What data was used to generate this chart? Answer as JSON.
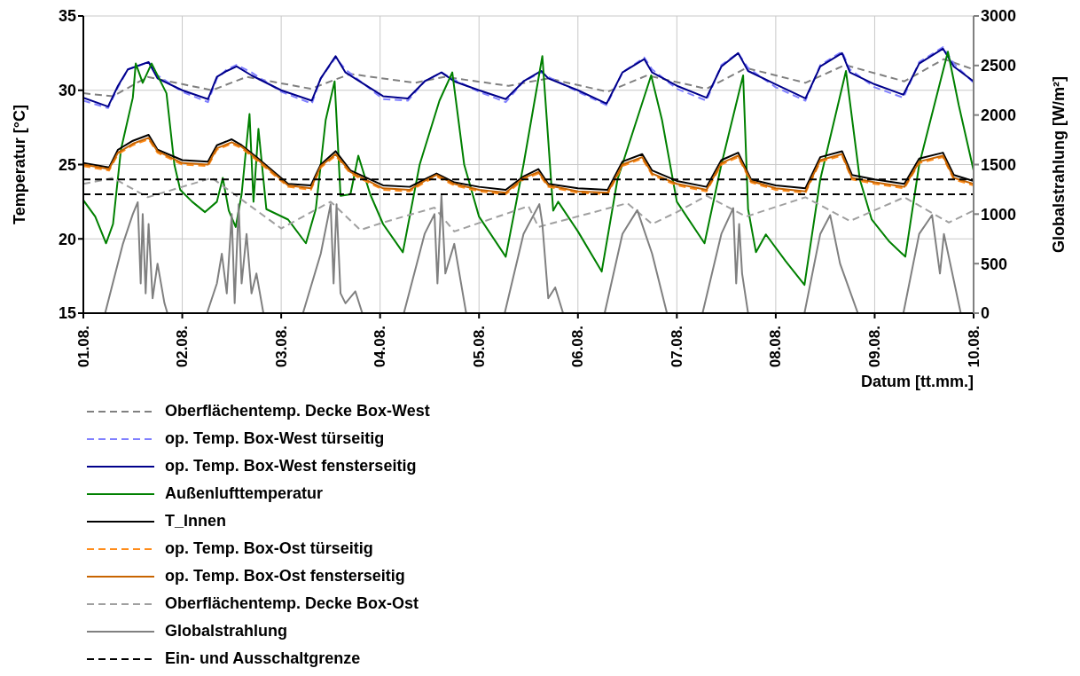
{
  "chart_data": {
    "type": "line",
    "xlabel": "Datum [tt.mm.]",
    "ylabel": "Temperatur [°C]",
    "y2label": "Globalstrahlung [W/m²]",
    "xlim": [
      "--08-01",
      "--08-10"
    ],
    "xticks": [
      {
        "value": "--08-01",
        "label": "01.08."
      },
      {
        "value": "--08-02",
        "label": "02.08."
      },
      {
        "value": "--08-03",
        "label": "03.08."
      },
      {
        "value": "--08-04",
        "label": "04.08."
      },
      {
        "value": "--08-05",
        "label": "05.08."
      },
      {
        "value": "--08-06",
        "label": "06.08."
      },
      {
        "value": "--08-07",
        "label": "07.08."
      },
      {
        "value": "--08-08",
        "label": "08.08."
      },
      {
        "value": "--08-09",
        "label": "09.08."
      },
      {
        "value": "--08-10",
        "label": "10.08."
      }
    ],
    "ylim": [
      15,
      35
    ],
    "yticks": [
      15,
      20,
      25,
      30,
      35
    ],
    "y2lim": [
      0,
      3000
    ],
    "y2ticks": [
      0,
      500,
      1000,
      1500,
      2000,
      2500,
      3000
    ],
    "grid": true,
    "legend": "bottom",
    "series": [
      {
        "name": "Oberflächentemp. Decke Box-West",
        "color": "#808080",
        "line_style": "dashed",
        "x": [
          "--08-01T00:00",
          "--08-01T07:12",
          "--08-01T15:36",
          "--08-02T07:12",
          "--08-02T15:36",
          "--08-03T07:12",
          "--08-03T16:48",
          "--08-04T08:24",
          "--08-04T15:36",
          "--08-05T07:12",
          "--08-05T16:48",
          "--08-06T07:12",
          "--08-06T16:48",
          "--08-07T07:12",
          "--08-07T16:48",
          "--08-08T07:12",
          "--08-08T16:48",
          "--08-09T07:12",
          "--08-09T16:48",
          "--08-10T00:00"
        ],
        "values": [
          29.8,
          29.6,
          30.9,
          30.0,
          30.9,
          30.1,
          31.1,
          30.5,
          30.9,
          30.3,
          30.8,
          29.9,
          31.0,
          30.1,
          31.5,
          30.5,
          31.7,
          30.6,
          32.1,
          31.4
        ]
      },
      {
        "name": "op. Temp. Box-West türseitig",
        "color": "#8080ff",
        "line_style": "dashed",
        "x": [
          "--08-01T00:00",
          "--08-01T06:00",
          "--08-01T08:24",
          "--08-01T10:48",
          "--08-01T15:50",
          "--08-01T18:00",
          "--08-02T00:00",
          "--08-02T06:14",
          "--08-02T08:24",
          "--08-02T10:48",
          "--08-02T13:12",
          "--08-02T16:48",
          "--08-03T00:00",
          "--08-03T07:26",
          "--08-03T09:36",
          "--08-03T13:12",
          "--08-03T15:36",
          "--08-04T00:43",
          "--08-04T06:43",
          "--08-04T10:48",
          "--08-04T14:53",
          "--08-04T18:00",
          "--08-05T00:00",
          "--08-05T06:29",
          "--08-05T10:48",
          "--08-05T15:07",
          "--08-05T16:48",
          "--08-06T00:00",
          "--08-06T06:58",
          "--08-06T10:48",
          "--08-06T16:05",
          "--08-06T18:00",
          "--08-07T00:00",
          "--08-07T07:12",
          "--08-07T10:48",
          "--08-07T14:53",
          "--08-07T17:17",
          "--08-08T00:00",
          "--08-08T07:12",
          "--08-08T10:48",
          "--08-08T16:05",
          "--08-08T18:00",
          "--08-09T00:00",
          "--08-09T06:58",
          "--08-09T10:48",
          "--08-09T16:34",
          "--08-09T19:12",
          "--08-10T00:00"
        ],
        "values": [
          29.3,
          28.8,
          30.2,
          31.4,
          31.9,
          31.0,
          29.9,
          29.2,
          30.8,
          31.4,
          31.7,
          31.2,
          29.9,
          29.1,
          30.8,
          32.2,
          31.4,
          29.4,
          29.3,
          30.6,
          31.2,
          30.7,
          29.9,
          29.2,
          30.6,
          31.2,
          30.9,
          29.9,
          29.0,
          31.2,
          32.2,
          31.4,
          30.1,
          29.3,
          31.7,
          32.5,
          31.5,
          30.2,
          29.3,
          31.7,
          32.6,
          31.4,
          30.2,
          29.5,
          31.9,
          32.9,
          31.8,
          30.5
        ]
      },
      {
        "name": "op. Temp. Box-West fensterseitig",
        "color": "#00008b",
        "line_style": "solid",
        "x": [
          "--08-01T00:00",
          "--08-01T06:00",
          "--08-01T08:24",
          "--08-01T10:48",
          "--08-01T15:50",
          "--08-01T18:00",
          "--08-02T00:00",
          "--08-02T06:14",
          "--08-02T08:24",
          "--08-02T10:48",
          "--08-02T13:12",
          "--08-02T16:48",
          "--08-03T00:00",
          "--08-03T07:26",
          "--08-03T09:36",
          "--08-03T13:12",
          "--08-03T15:36",
          "--08-04T00:43",
          "--08-04T06:43",
          "--08-04T10:48",
          "--08-04T14:53",
          "--08-04T18:00",
          "--08-05T00:00",
          "--08-05T06:29",
          "--08-05T10:48",
          "--08-05T15:07",
          "--08-05T16:48",
          "--08-06T00:00",
          "--08-06T06:58",
          "--08-06T10:48",
          "--08-06T16:05",
          "--08-06T18:00",
          "--08-07T00:00",
          "--08-07T07:12",
          "--08-07T10:48",
          "--08-07T14:53",
          "--08-07T17:17",
          "--08-08T00:00",
          "--08-08T07:12",
          "--08-08T10:48",
          "--08-08T16:05",
          "--08-08T18:00",
          "--08-09T00:00",
          "--08-09T06:58",
          "--08-09T10:48",
          "--08-09T16:34",
          "--08-09T19:12",
          "--08-10T00:00"
        ],
        "values": [
          29.5,
          28.9,
          30.3,
          31.4,
          31.9,
          30.8,
          30.0,
          29.4,
          30.9,
          31.3,
          31.6,
          31.0,
          30.0,
          29.3,
          30.8,
          32.3,
          31.2,
          29.6,
          29.45,
          30.6,
          31.2,
          30.6,
          30.0,
          29.4,
          30.6,
          31.3,
          30.8,
          30.0,
          29.1,
          31.2,
          32.1,
          31.2,
          30.3,
          29.5,
          31.6,
          32.5,
          31.3,
          30.4,
          29.45,
          31.6,
          32.5,
          31.2,
          30.4,
          29.7,
          31.8,
          32.8,
          31.6,
          30.6
        ]
      },
      {
        "name": "Außenlufttemperatur",
        "color": "#008000",
        "line_style": "solid",
        "x": [
          "--08-01T00:00",
          "--08-01T02:53",
          "--08-01T05:31",
          "--08-01T07:12",
          "--08-01T09:07",
          "--08-01T12:00",
          "--08-01T12:43",
          "--08-01T14:24",
          "--08-01T16:34",
          "--08-01T20:10",
          "--08-01T22:05",
          "--08-01T23:31",
          "--08-02T02:24",
          "--08-02T05:31",
          "--08-02T08:24",
          "--08-02T09:50",
          "--08-02T11:17",
          "--08-02T12:58",
          "--08-02T14:24",
          "--08-02T16:19",
          "--08-02T17:17",
          "--08-02T18:29",
          "--08-02T20:24",
          "--08-03T01:41",
          "--08-03T06:00",
          "--08-03T08:24",
          "--08-03T10:48",
          "--08-03T12:58",
          "--08-03T14:24",
          "--08-03T16:48",
          "--08-03T18:43",
          "--08-03T21:36",
          "--08-04T00:43",
          "--08-04T05:31",
          "--08-04T09:36",
          "--08-04T14:24",
          "--08-04T17:31",
          "--08-04T20:24",
          "--08-05T00:00",
          "--08-05T06:29",
          "--08-05T10:48",
          "--08-05T15:22",
          "--08-05T18:00",
          "--08-05T19:12",
          "--08-06T00:00",
          "--08-06T05:46",
          "--08-06T09:36",
          "--08-06T17:46",
          "--08-06T20:24",
          "--08-07T00:00",
          "--08-07T06:43",
          "--08-07T10:48",
          "--08-07T16:05",
          "--08-07T17:17",
          "--08-07T19:12",
          "--08-07T21:36",
          "--08-08T02:24",
          "--08-08T06:58",
          "--08-08T10:48",
          "--08-08T17:02",
          "--08-08T20:24",
          "--08-08T23:17",
          "--08-09T03:36",
          "--08-09T07:26",
          "--08-09T10:48",
          "--08-09T17:46",
          "--08-09T20:24",
          "--08-10T00:00"
        ],
        "values": [
          22.6,
          21.5,
          19.7,
          21,
          26,
          29.5,
          31.8,
          30.5,
          31.8,
          29.8,
          25,
          23.3,
          22.5,
          21.8,
          22.5,
          24.1,
          21.9,
          20.8,
          23,
          28.4,
          22.5,
          27.4,
          22,
          21.3,
          19.7,
          22,
          28,
          30.6,
          22.9,
          23,
          25.6,
          23,
          21.0,
          19.1,
          25,
          29.3,
          31.2,
          25,
          21.5,
          18.8,
          25,
          32.3,
          21.9,
          22.5,
          20.5,
          17.8,
          24,
          31.0,
          28,
          22.5,
          19.7,
          25,
          31.0,
          22,
          19.1,
          20.3,
          18.5,
          16.9,
          24,
          31.3,
          24,
          21.3,
          19.8,
          18.8,
          25,
          32.6,
          29,
          24.6
        ]
      },
      {
        "name": "T_Innen",
        "color": "#000000",
        "line_style": "solid",
        "x": [
          "--08-01T00:00",
          "--08-01T06:14",
          "--08-01T08:24",
          "--08-01T12:00",
          "--08-01T15:50",
          "--08-01T18:00",
          "--08-02T00:00",
          "--08-02T06:14",
          "--08-02T08:24",
          "--08-02T12:00",
          "--08-02T14:24",
          "--08-02T18:00",
          "--08-03T01:41",
          "--08-03T07:12",
          "--08-03T09:36",
          "--08-03T13:12",
          "--08-03T16:48",
          "--08-04T00:43",
          "--08-04T07:12",
          "--08-04T10:48",
          "--08-04T13:41",
          "--08-04T18:00",
          "--08-05T00:00",
          "--08-05T06:29",
          "--08-05T10:48",
          "--08-05T14:24",
          "--08-05T16:48",
          "--08-06T00:00",
          "--08-06T07:12",
          "--08-06T10:48",
          "--08-06T15:36",
          "--08-06T18:00",
          "--08-07T00:00",
          "--08-07T07:12",
          "--08-07T10:48",
          "--08-07T14:53",
          "--08-07T18:00",
          "--08-08T00:00",
          "--08-08T07:12",
          "--08-08T10:48",
          "--08-08T16:05",
          "--08-08T18:29",
          "--08-09T00:00",
          "--08-09T07:12",
          "--08-09T10:48",
          "--08-09T16:34",
          "--08-09T19:12",
          "--08-10T00:00"
        ],
        "values": [
          25.1,
          24.8,
          26.0,
          26.6,
          27.0,
          26.0,
          25.3,
          25.2,
          26.3,
          26.7,
          26.3,
          25.5,
          23.7,
          23.6,
          25.0,
          25.9,
          24.6,
          23.6,
          23.5,
          24.0,
          24.4,
          23.8,
          23.5,
          23.3,
          24.2,
          24.7,
          23.7,
          23.4,
          23.3,
          25.2,
          25.7,
          24.6,
          23.9,
          23.5,
          25.3,
          25.8,
          24.0,
          23.6,
          23.4,
          25.5,
          25.9,
          24.3,
          24.0,
          23.7,
          25.4,
          25.8,
          24.3,
          23.9
        ]
      },
      {
        "name": "op. Temp. Box-Ost türseitig",
        "color": "#ff8c1a",
        "line_style": "dashed",
        "x": [
          "--08-01T00:00",
          "--08-01T06:14",
          "--08-01T08:24",
          "--08-01T12:00",
          "--08-01T15:50",
          "--08-01T18:00",
          "--08-02T00:00",
          "--08-02T06:14",
          "--08-02T08:24",
          "--08-02T12:00",
          "--08-02T14:24",
          "--08-02T18:00",
          "--08-03T01:41",
          "--08-03T07:12",
          "--08-03T09:36",
          "--08-03T13:12",
          "--08-03T16:48",
          "--08-04T00:43",
          "--08-04T07:12",
          "--08-04T10:48",
          "--08-04T13:41",
          "--08-04T18:00",
          "--08-05T00:00",
          "--08-05T06:29",
          "--08-05T10:48",
          "--08-05T14:24",
          "--08-05T16:48",
          "--08-06T00:00",
          "--08-06T07:12",
          "--08-06T10:48",
          "--08-06T15:36",
          "--08-06T18:00",
          "--08-07T00:00",
          "--08-07T07:12",
          "--08-07T10:48",
          "--08-07T14:53",
          "--08-07T18:00",
          "--08-08T00:00",
          "--08-08T07:12",
          "--08-08T10:48",
          "--08-08T16:05",
          "--08-08T18:29",
          "--08-09T00:00",
          "--08-09T07:12",
          "--08-09T10:48",
          "--08-09T16:34",
          "--08-09T19:12",
          "--08-10T00:00"
        ],
        "values": [
          24.9,
          24.6,
          25.7,
          26.3,
          26.7,
          25.8,
          25.0,
          24.9,
          26.0,
          26.4,
          26.1,
          25.3,
          23.5,
          23.3,
          24.8,
          25.6,
          24.4,
          23.3,
          23.2,
          23.8,
          24.2,
          23.6,
          23.2,
          23.0,
          24.0,
          24.4,
          23.5,
          23.1,
          23.0,
          24.9,
          25.4,
          24.3,
          23.6,
          23.2,
          25.0,
          25.5,
          23.8,
          23.3,
          23.1,
          25.2,
          25.6,
          24.0,
          23.7,
          23.4,
          25.1,
          25.5,
          24.0,
          23.6
        ]
      },
      {
        "name": "op. Temp. Box-Ost fensterseitig",
        "color": "#c86400",
        "line_style": "solid",
        "x": [
          "--08-01T00:00",
          "--08-01T06:14",
          "--08-01T08:24",
          "--08-01T12:00",
          "--08-01T15:50",
          "--08-01T18:00",
          "--08-02T00:00",
          "--08-02T06:14",
          "--08-02T08:24",
          "--08-02T12:00",
          "--08-02T14:24",
          "--08-02T18:00",
          "--08-03T01:41",
          "--08-03T07:12",
          "--08-03T09:36",
          "--08-03T13:12",
          "--08-03T16:48",
          "--08-04T00:43",
          "--08-04T07:12",
          "--08-04T10:48",
          "--08-04T13:41",
          "--08-04T18:00",
          "--08-05T00:00",
          "--08-05T06:29",
          "--08-05T10:48",
          "--08-05T14:24",
          "--08-05T16:48",
          "--08-06T00:00",
          "--08-06T07:12",
          "--08-06T10:48",
          "--08-06T15:36",
          "--08-06T18:00",
          "--08-07T00:00",
          "--08-07T07:12",
          "--08-07T10:48",
          "--08-07T14:53",
          "--08-07T18:00",
          "--08-08T00:00",
          "--08-08T07:12",
          "--08-08T10:48",
          "--08-08T16:05",
          "--08-08T18:29",
          "--08-09T00:00",
          "--08-09T07:12",
          "--08-09T10:48",
          "--08-09T16:34",
          "--08-09T19:12",
          "--08-10T00:00"
        ],
        "values": [
          25.0,
          24.7,
          25.8,
          26.4,
          26.8,
          25.9,
          25.1,
          25.0,
          26.1,
          26.5,
          26.2,
          25.4,
          23.6,
          23.4,
          24.9,
          25.7,
          24.5,
          23.4,
          23.3,
          23.9,
          24.3,
          23.7,
          23.3,
          23.1,
          24.1,
          24.5,
          23.6,
          23.2,
          23.1,
          25.0,
          25.5,
          24.4,
          23.7,
          23.3,
          25.1,
          25.6,
          23.9,
          23.4,
          23.2,
          25.3,
          25.7,
          24.1,
          23.8,
          23.5,
          25.2,
          25.6,
          24.1,
          23.7
        ]
      },
      {
        "name": "Oberflächentemp. Decke Box-Ost",
        "color": "#a0a0a0",
        "line_style": "dashed",
        "x": [
          "--08-01T00:00",
          "--08-01T07:12",
          "--08-01T15:36",
          "--08-02T07:12",
          "--08-03T00:00",
          "--08-03T12:00",
          "--08-03T19:12",
          "--08-04T00:43",
          "--08-04T13:12",
          "--08-04T18:00",
          "--08-05T12:00",
          "--08-05T14:24",
          "--08-06T12:00",
          "--08-06T18:00",
          "--08-07T00:00",
          "--08-07T07:12",
          "--08-07T16:48",
          "--08-08T07:12",
          "--08-08T18:00",
          "--08-09T07:12",
          "--08-09T18:00",
          "--08-10T00:00"
        ],
        "values": [
          23.7,
          24.1,
          22.8,
          24.1,
          20.7,
          22.5,
          20.6,
          21.1,
          22.1,
          20.5,
          22.2,
          20.8,
          22.4,
          21.0,
          21.8,
          22.9,
          21.5,
          22.8,
          21.2,
          22.8,
          21.1,
          21.9
        ]
      },
      {
        "name": "Globalstrahlung",
        "color": "#808080",
        "line_style": "solid",
        "axis": "y2",
        "x": [
          "--08-01T00:00",
          "--08-01T05:17",
          "--08-01T09:36",
          "--08-01T12:00",
          "--08-01T13:12",
          "--08-01T13:55",
          "--08-01T14:24",
          "--08-01T15:07",
          "--08-01T15:50",
          "--08-01T16:48",
          "--08-01T18:00",
          "--08-01T19:41",
          "--08-01T20:24",
          "--08-02T06:00",
          "--08-02T08:24",
          "--08-02T09:36",
          "--08-02T10:48",
          "--08-02T12:00",
          "--08-02T12:43",
          "--08-02T13:41",
          "--08-02T14:24",
          "--08-02T15:36",
          "--08-02T16:48",
          "--08-02T18:00",
          "--08-02T19:41",
          "--08-03T05:17",
          "--08-03T09:36",
          "--08-03T12:00",
          "--08-03T12:43",
          "--08-03T13:26",
          "--08-03T14:24",
          "--08-03T15:36",
          "--08-03T18:00",
          "--08-03T19:41",
          "--08-04T05:46",
          "--08-04T10:48",
          "--08-04T13:12",
          "--08-04T13:55",
          "--08-04T14:53",
          "--08-04T15:50",
          "--08-04T18:00",
          "--08-04T20:53",
          "--08-05T06:14",
          "--08-05T10:48",
          "--08-05T14:38",
          "--08-05T15:22",
          "--08-05T16:48",
          "--08-05T18:29",
          "--08-05T20:24",
          "--08-06T06:29",
          "--08-06T10:48",
          "--08-06T14:24",
          "--08-06T18:00",
          "--08-06T21:36",
          "--08-07T06:14",
          "--08-07T10:48",
          "--08-07T13:41",
          "--08-07T14:24",
          "--08-07T15:07",
          "--08-07T15:50",
          "--08-07T17:17",
          "--08-08T06:58",
          "--08-08T10:48",
          "--08-08T13:12",
          "--08-08T15:36",
          "--08-08T19:55",
          "--08-09T06:58",
          "--08-09T10:48",
          "--08-09T13:55",
          "--08-09T15:50",
          "--08-09T16:48",
          "--08-09T20:53",
          "--08-10T00:00"
        ],
        "values": [
          0,
          0,
          700,
          1000,
          1120,
          300,
          1000,
          200,
          900,
          150,
          500,
          100,
          0,
          0,
          300,
          600,
          200,
          1000,
          100,
          1100,
          300,
          800,
          200,
          400,
          0,
          0,
          600,
          1100,
          300,
          1100,
          200,
          100,
          220,
          0,
          0,
          800,
          1000,
          300,
          1190,
          400,
          700,
          0,
          0,
          800,
          1100,
          900,
          150,
          260,
          0,
          0,
          800,
          1040,
          600,
          0,
          0,
          800,
          1060,
          300,
          900,
          400,
          0,
          0,
          800,
          990,
          500,
          0,
          0,
          800,
          990,
          400,
          800,
          0,
          0
        ]
      },
      {
        "name": "Ein- und Ausschaltgrenze",
        "color": "#000000",
        "line_style": "dashed",
        "x": [
          "--08-01T00:00",
          "--08-10T00:00"
        ],
        "values": [
          24,
          24
        ]
      },
      {
        "color": "#000000",
        "line_style": "dashed",
        "x": [
          "--08-01T00:00",
          "--08-10T00:00"
        ],
        "values": [
          23,
          23
        ]
      }
    ]
  }
}
